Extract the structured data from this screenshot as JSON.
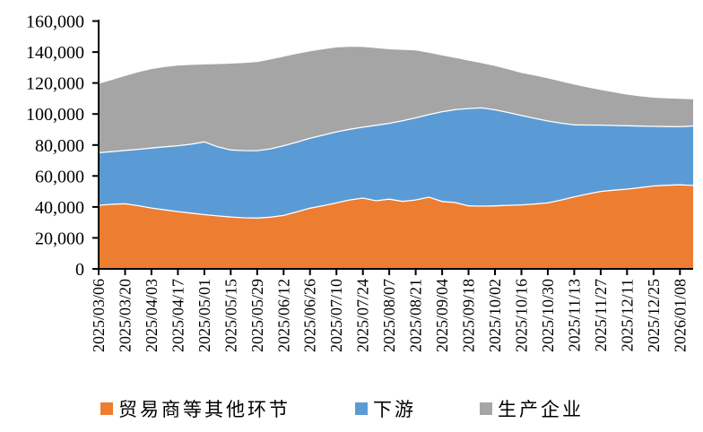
{
  "chart_data": {
    "type": "area",
    "stacked": true,
    "title": "",
    "xlabel": "",
    "ylabel": "",
    "grid": false,
    "legend_position": "bottom",
    "ylim": [
      0,
      160000
    ],
    "ytick_step": 20000,
    "ytick_labels": [
      "0",
      "20,000",
      "40,000",
      "60,000",
      "80,000",
      "100,000",
      "120,000",
      "140,000",
      "160,000"
    ],
    "x_labels": [
      "2025/03/06",
      "2025/03/20",
      "2025/04/03",
      "2025/04/17",
      "2025/05/01",
      "2025/05/15",
      "2025/05/29",
      "2025/06/12",
      "2025/06/26",
      "2025/07/10",
      "2025/07/24",
      "2025/08/07",
      "2025/08/21",
      "2025/09/04",
      "2025/09/18",
      "2025/10/02",
      "2025/10/16",
      "2025/10/30",
      "2025/11/13",
      "2025/11/27",
      "2025/12/11",
      "2025/12/25",
      "2026/01/08"
    ],
    "points_per_label": 2,
    "axis_color": "#000000",
    "separator_color": "#FFFFFF",
    "series": [
      {
        "name": "贸易商等其他环节",
        "color": "#ED7D31",
        "values": [
          41000,
          41700,
          42000,
          40800,
          39300,
          38100,
          37000,
          36000,
          35000,
          34200,
          33500,
          33000,
          32800,
          33400,
          34500,
          36800,
          39200,
          40800,
          42600,
          44500,
          45700,
          44000,
          45000,
          43600,
          44500,
          46300,
          43500,
          42800,
          40700,
          40500,
          40700,
          41000,
          41300,
          41900,
          42600,
          44400,
          46500,
          48300,
          50000,
          50800,
          51500,
          52500,
          53500,
          54000,
          54300,
          53900
        ]
      },
      {
        "name": "下游",
        "color": "#5B9BD5",
        "values": [
          34000,
          34000,
          34500,
          36400,
          38700,
          40700,
          42500,
          44500,
          47000,
          44600,
          43300,
          43400,
          43500,
          44100,
          45000,
          45000,
          45100,
          45600,
          45900,
          45600,
          45800,
          48700,
          49000,
          52000,
          53000,
          53300,
          58000,
          60000,
          62800,
          63400,
          62000,
          60000,
          57700,
          55300,
          52900,
          49700,
          46500,
          44600,
          42800,
          41800,
          40900,
          39700,
          38500,
          37900,
          37500,
          38400
        ]
      },
      {
        "name": "生产企业",
        "color": "#A5A5A5",
        "values": [
          44500,
          46300,
          48000,
          49800,
          51000,
          51500,
          51800,
          51200,
          50000,
          53400,
          55700,
          56600,
          57200,
          57700,
          57500,
          57000,
          56200,
          55400,
          54500,
          53300,
          51800,
          49900,
          47800,
          45800,
          43500,
          39900,
          36300,
          33400,
          31000,
          28900,
          28300,
          27800,
          27500,
          27600,
          27500,
          26900,
          26000,
          24300,
          22700,
          21400,
          20100,
          19200,
          18500,
          18200,
          18000,
          17200
        ]
      }
    ]
  }
}
